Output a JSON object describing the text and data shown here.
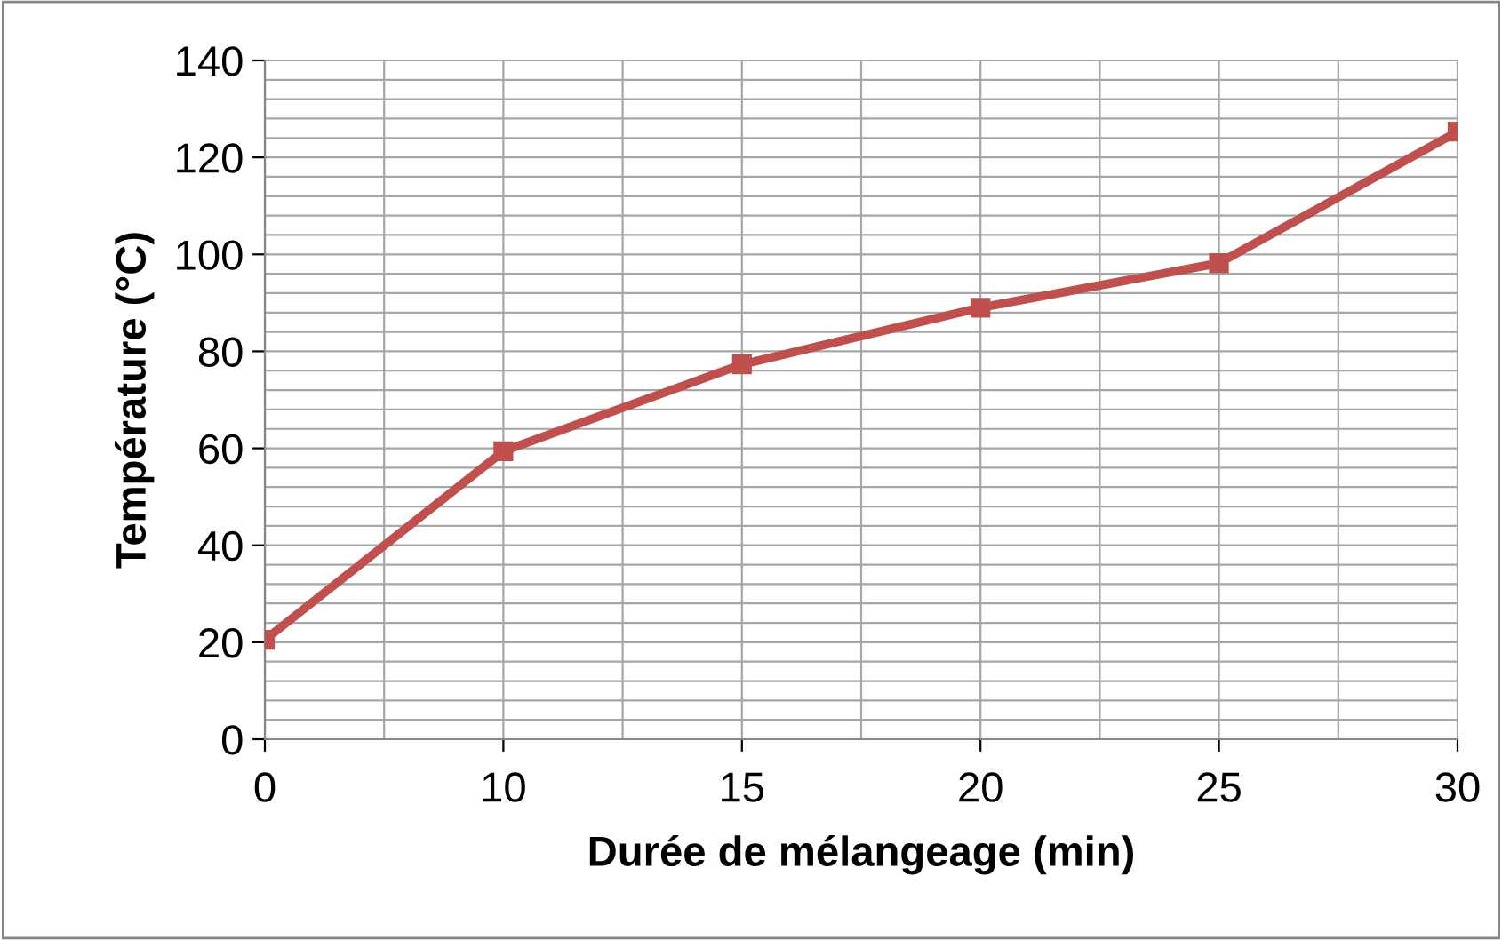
{
  "chart_data": {
    "type": "line",
    "xlabel": "Durée de mélangeage (min)",
    "ylabel": "Température (°C)",
    "categories": [
      "0",
      "10",
      "15",
      "20",
      "25",
      "30"
    ],
    "series": [
      {
        "color": "#c0504d",
        "values": [
          20.5,
          59.4,
          77.3,
          89,
          98.2,
          125.3
        ]
      }
    ],
    "ylim": [
      0,
      140
    ],
    "yticks": [
      0,
      20,
      40,
      60,
      80,
      100,
      120,
      140
    ],
    "grid": true,
    "marker": "square",
    "line_style": "solid"
  }
}
